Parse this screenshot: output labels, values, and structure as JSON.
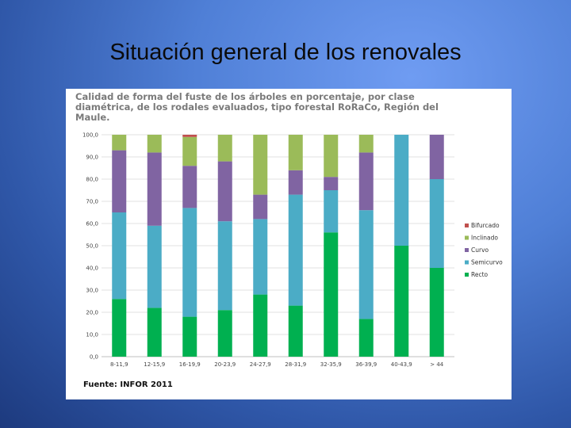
{
  "slide": {
    "title": "Situación general de los renovales"
  },
  "chart_data": {
    "type": "bar",
    "stacked": true,
    "title": "Calidad de forma del fuste de los árboles en porcentaje, por clase diamétrica, de los rodales evaluados, tipo forestal RoRaCo, Región del Maule.",
    "source": "Fuente: INFOR 2011",
    "categories": [
      "8-11,9",
      "12-15,9",
      "16-19,9",
      "20-23,9",
      "24-27,9",
      "28-31,9",
      "32-35,9",
      "36-39,9",
      "40-43,9",
      "> 44"
    ],
    "ylim": [
      0,
      100
    ],
    "yticks": [
      "0,0",
      "10,0",
      "20,0",
      "30,0",
      "40,0",
      "50,0",
      "60,0",
      "70,0",
      "80,0",
      "90,0",
      "100,0"
    ],
    "legend_position": "right",
    "series": [
      {
        "name": "Recto",
        "color": "#00b050",
        "values": [
          26,
          22,
          18,
          21,
          28,
          23,
          56,
          17,
          50,
          40
        ]
      },
      {
        "name": "Semicurvo",
        "color": "#4bacc6",
        "values": [
          39,
          37,
          49,
          40,
          34,
          50,
          19,
          49,
          50,
          40
        ]
      },
      {
        "name": "Curvo",
        "color": "#8064a2",
        "values": [
          28,
          33,
          19,
          27,
          11,
          11,
          6,
          26,
          0,
          20
        ]
      },
      {
        "name": "Inclinado",
        "color": "#9bbb59",
        "values": [
          7,
          8,
          13,
          12,
          27,
          16,
          19,
          8,
          0,
          0
        ]
      },
      {
        "name": "Bifurcado",
        "color": "#c0504d",
        "values": [
          0,
          0,
          1,
          0,
          0,
          0,
          0,
          0,
          0,
          0
        ]
      }
    ]
  }
}
